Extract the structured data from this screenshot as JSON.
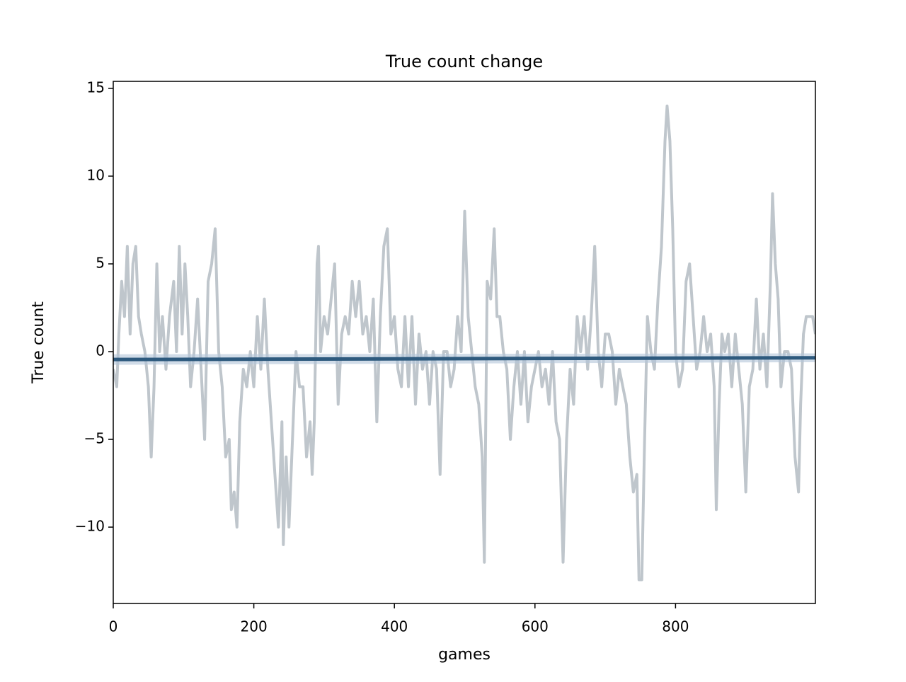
{
  "chart_data": {
    "type": "line",
    "title": "True count change",
    "xlabel": "games",
    "ylabel": "True count",
    "x": [
      0,
      5,
      8,
      12,
      16,
      20,
      24,
      28,
      32,
      36,
      40,
      45,
      50,
      54,
      58,
      62,
      66,
      70,
      75,
      80,
      86,
      90,
      94,
      98,
      102,
      106,
      110,
      115,
      120,
      125,
      130,
      135,
      140,
      145,
      150,
      155,
      160,
      165,
      168,
      172,
      176,
      180,
      185,
      190,
      195,
      200,
      205,
      210,
      215,
      220,
      225,
      230,
      235,
      240,
      242,
      246,
      250,
      255,
      260,
      265,
      270,
      275,
      280,
      283,
      286,
      290,
      292,
      295,
      300,
      305,
      310,
      315,
      320,
      325,
      330,
      335,
      340,
      345,
      350,
      355,
      360,
      365,
      370,
      375,
      380,
      385,
      390,
      395,
      400,
      405,
      410,
      415,
      420,
      425,
      430,
      435,
      440,
      445,
      450,
      455,
      460,
      465,
      470,
      475,
      480,
      485,
      490,
      495,
      500,
      505,
      510,
      515,
      520,
      525,
      528,
      532,
      537,
      542,
      546,
      550,
      555,
      560,
      565,
      570,
      575,
      580,
      585,
      590,
      595,
      600,
      605,
      610,
      615,
      620,
      625,
      630,
      635,
      640,
      645,
      650,
      655,
      660,
      665,
      670,
      675,
      680,
      685,
      690,
      695,
      700,
      705,
      710,
      715,
      720,
      725,
      730,
      735,
      740,
      745,
      748,
      752,
      756,
      760,
      765,
      770,
      775,
      780,
      785,
      788,
      792,
      796,
      800,
      805,
      810,
      815,
      820,
      825,
      830,
      835,
      840,
      845,
      850,
      855,
      858,
      862,
      866,
      870,
      875,
      880,
      885,
      890,
      895,
      900,
      905,
      910,
      915,
      920,
      925,
      930,
      935,
      938,
      942,
      946,
      950,
      955,
      960,
      965,
      970,
      975,
      978,
      982,
      986,
      990,
      995,
      999
    ],
    "values": [
      -1,
      -2,
      1,
      4,
      2,
      6,
      1,
      5,
      6,
      2,
      1,
      0,
      -2,
      -6,
      -2,
      5,
      0,
      2,
      -1,
      2,
      4,
      0,
      6,
      1,
      5,
      2,
      -2,
      0,
      3,
      -1,
      -5,
      4,
      5,
      7,
      0,
      -2,
      -6,
      -5,
      -9,
      -8,
      -10,
      -4,
      -1,
      -2,
      0,
      -2,
      2,
      -1,
      3,
      -1,
      -4,
      -7,
      -10,
      -4,
      -11,
      -6,
      -10,
      -5,
      0,
      -2,
      -2,
      -6,
      -4,
      -7,
      -4,
      5,
      6,
      0,
      2,
      1,
      3,
      5,
      -3,
      1,
      2,
      1,
      4,
      2,
      4,
      1,
      2,
      0,
      3,
      -4,
      2,
      6,
      7,
      1,
      2,
      -1,
      -2,
      2,
      -2,
      2,
      -3,
      1,
      -1,
      0,
      -3,
      0,
      -1,
      -7,
      0,
      0,
      -2,
      -1,
      2,
      0,
      8,
      2,
      0,
      -2,
      -3,
      -6,
      -12,
      4,
      3,
      7,
      2,
      2,
      0,
      -1,
      -5,
      -2,
      0,
      -3,
      0,
      -4,
      -2,
      -1,
      0,
      -2,
      -1,
      -3,
      0,
      -4,
      -5,
      -12,
      -5,
      -1,
      -3,
      2,
      0,
      2,
      -1,
      2,
      6,
      0,
      -2,
      1,
      1,
      0,
      -3,
      -1,
      -2,
      -3,
      -6,
      -8,
      -7,
      -13,
      -13,
      -5,
      2,
      0,
      -1,
      3,
      6,
      12,
      14,
      12,
      7,
      0,
      -2,
      -1,
      4,
      5,
      2,
      -1,
      0,
      2,
      0,
      1,
      -2,
      -9,
      -3,
      1,
      0,
      1,
      -2,
      1,
      -1,
      -3,
      -8,
      -2,
      -1,
      3,
      -1,
      1,
      -2,
      4,
      9,
      5,
      3,
      -2,
      0,
      0,
      -1,
      -6,
      -8,
      -3,
      1,
      2,
      2,
      2,
      1
    ],
    "color": "#bfc6cc",
    "fit": {
      "x": [
        0,
        999
      ],
      "values": [
        -0.45,
        -0.35
      ],
      "lower": [
        -0.75,
        -0.6
      ],
      "upper": [
        -0.15,
        -0.1
      ],
      "color": "#2e5a7e",
      "band_color": "#b3c4d9"
    },
    "xlim": [
      0,
      999
    ],
    "ylim": [
      -14.35,
      15.4
    ],
    "xticks": [
      0,
      200,
      400,
      600,
      800
    ],
    "yticks": [
      {
        "value": -10,
        "label": "−10"
      },
      {
        "value": -5,
        "label": "−5"
      },
      0,
      5,
      10,
      15
    ]
  }
}
